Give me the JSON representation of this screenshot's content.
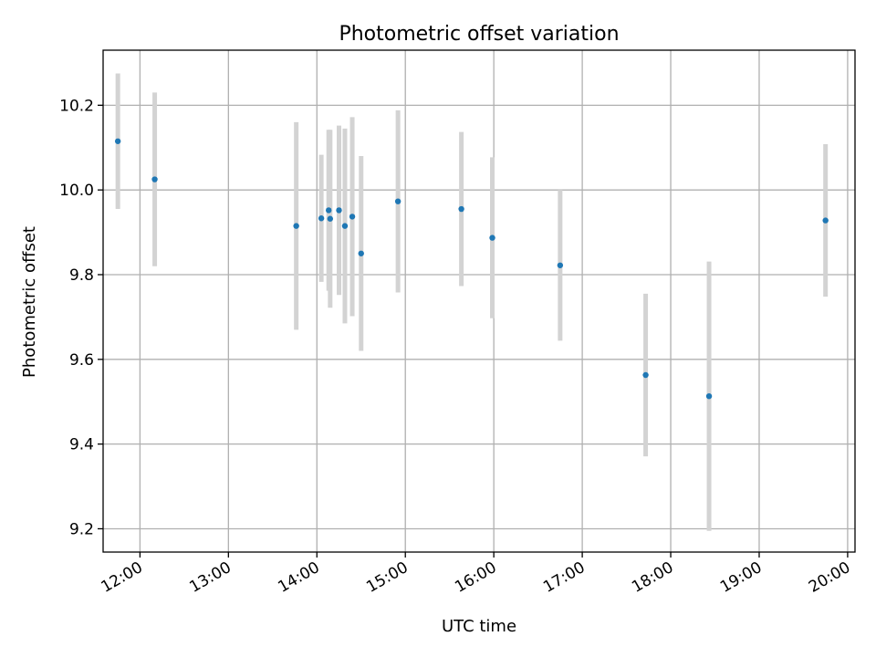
{
  "chart_data": {
    "type": "scatter",
    "title": "Photometric offset variation",
    "xlabel": "UTC time",
    "ylabel": "Photometric offset",
    "xlim": [
      "11:35",
      "20:05"
    ],
    "ylim": [
      9.145,
      10.33
    ],
    "grid": true,
    "x_ticks": [
      "12:00",
      "13:00",
      "14:00",
      "15:00",
      "16:00",
      "17:00",
      "18:00",
      "19:00",
      "20:00"
    ],
    "y_ticks": [
      "9.2",
      "9.4",
      "9.6",
      "9.8",
      "10.0",
      "10.2"
    ],
    "colors": {
      "point": "#1f77b4",
      "error_bar": "#d3d3d3"
    },
    "points": [
      {
        "x": "11:45",
        "y": 10.115,
        "err": 0.16
      },
      {
        "x": "12:10",
        "y": 10.025,
        "err": 0.205
      },
      {
        "x": "13:46",
        "y": 9.915,
        "err": 0.245
      },
      {
        "x": "14:03",
        "y": 9.933,
        "err": 0.15
      },
      {
        "x": "14:08",
        "y": 9.952,
        "err": 0.19
      },
      {
        "x": "14:09",
        "y": 9.932,
        "err": 0.21
      },
      {
        "x": "14:15",
        "y": 9.952,
        "err": 0.2
      },
      {
        "x": "14:19",
        "y": 9.915,
        "err": 0.23
      },
      {
        "x": "14:24",
        "y": 9.937,
        "err": 0.235
      },
      {
        "x": "14:30",
        "y": 9.85,
        "err": 0.23
      },
      {
        "x": "14:55",
        "y": 9.973,
        "err": 0.215
      },
      {
        "x": "15:38",
        "y": 9.955,
        "err": 0.182
      },
      {
        "x": "15:59",
        "y": 9.887,
        "err": 0.19
      },
      {
        "x": "16:45",
        "y": 9.822,
        "err": 0.178
      },
      {
        "x": "17:43",
        "y": 9.563,
        "err": 0.192
      },
      {
        "x": "18:26",
        "y": 9.513,
        "err": 0.318
      },
      {
        "x": "19:45",
        "y": 9.928,
        "err": 0.18
      }
    ]
  }
}
